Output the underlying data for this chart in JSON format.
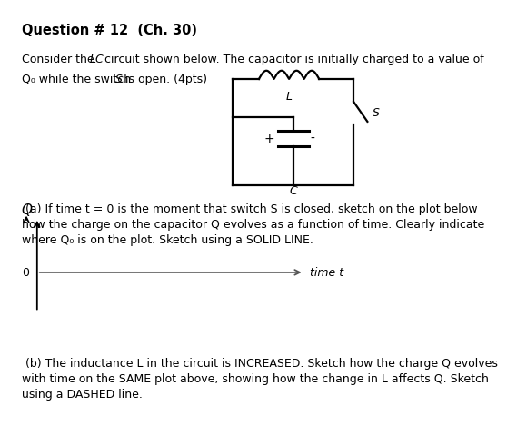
{
  "title": "Question # 12  (Ch. 30)",
  "background_color": "#ffffff",
  "text_color": "#000000",
  "font_size_title": 10.5,
  "font_size_body": 9.0,
  "circuit_L_label": "L",
  "circuit_S_label": "S",
  "circuit_C_label": "C",
  "circuit_plus": "+",
  "circuit_minus": "-",
  "ylabel": "Q",
  "xlabel": "time t",
  "zero_label": "0",
  "line1_p1": "Consider the ",
  "line1_p2": "LC",
  "line1_p3": " circuit shown below. The capacitor is initially charged to a value of",
  "line2": "Q₀ while the switch S is open. (4pts)",
  "para_a": " (a) If time t = 0 is the moment that switch S is closed, sketch on the plot below\nhow the charge on the capacitor Q evolves as a function of time. Clearly indicate\nwhere Q₀ is on the plot. Sketch using a SOLID LINE.",
  "para_b": " (b) The inductance L in the circuit is INCREASED. Sketch how the charge Q evolves\nwith time on the SAME plot above, showing how the change in L affects Q. Sketch\nusing a DASHED line."
}
